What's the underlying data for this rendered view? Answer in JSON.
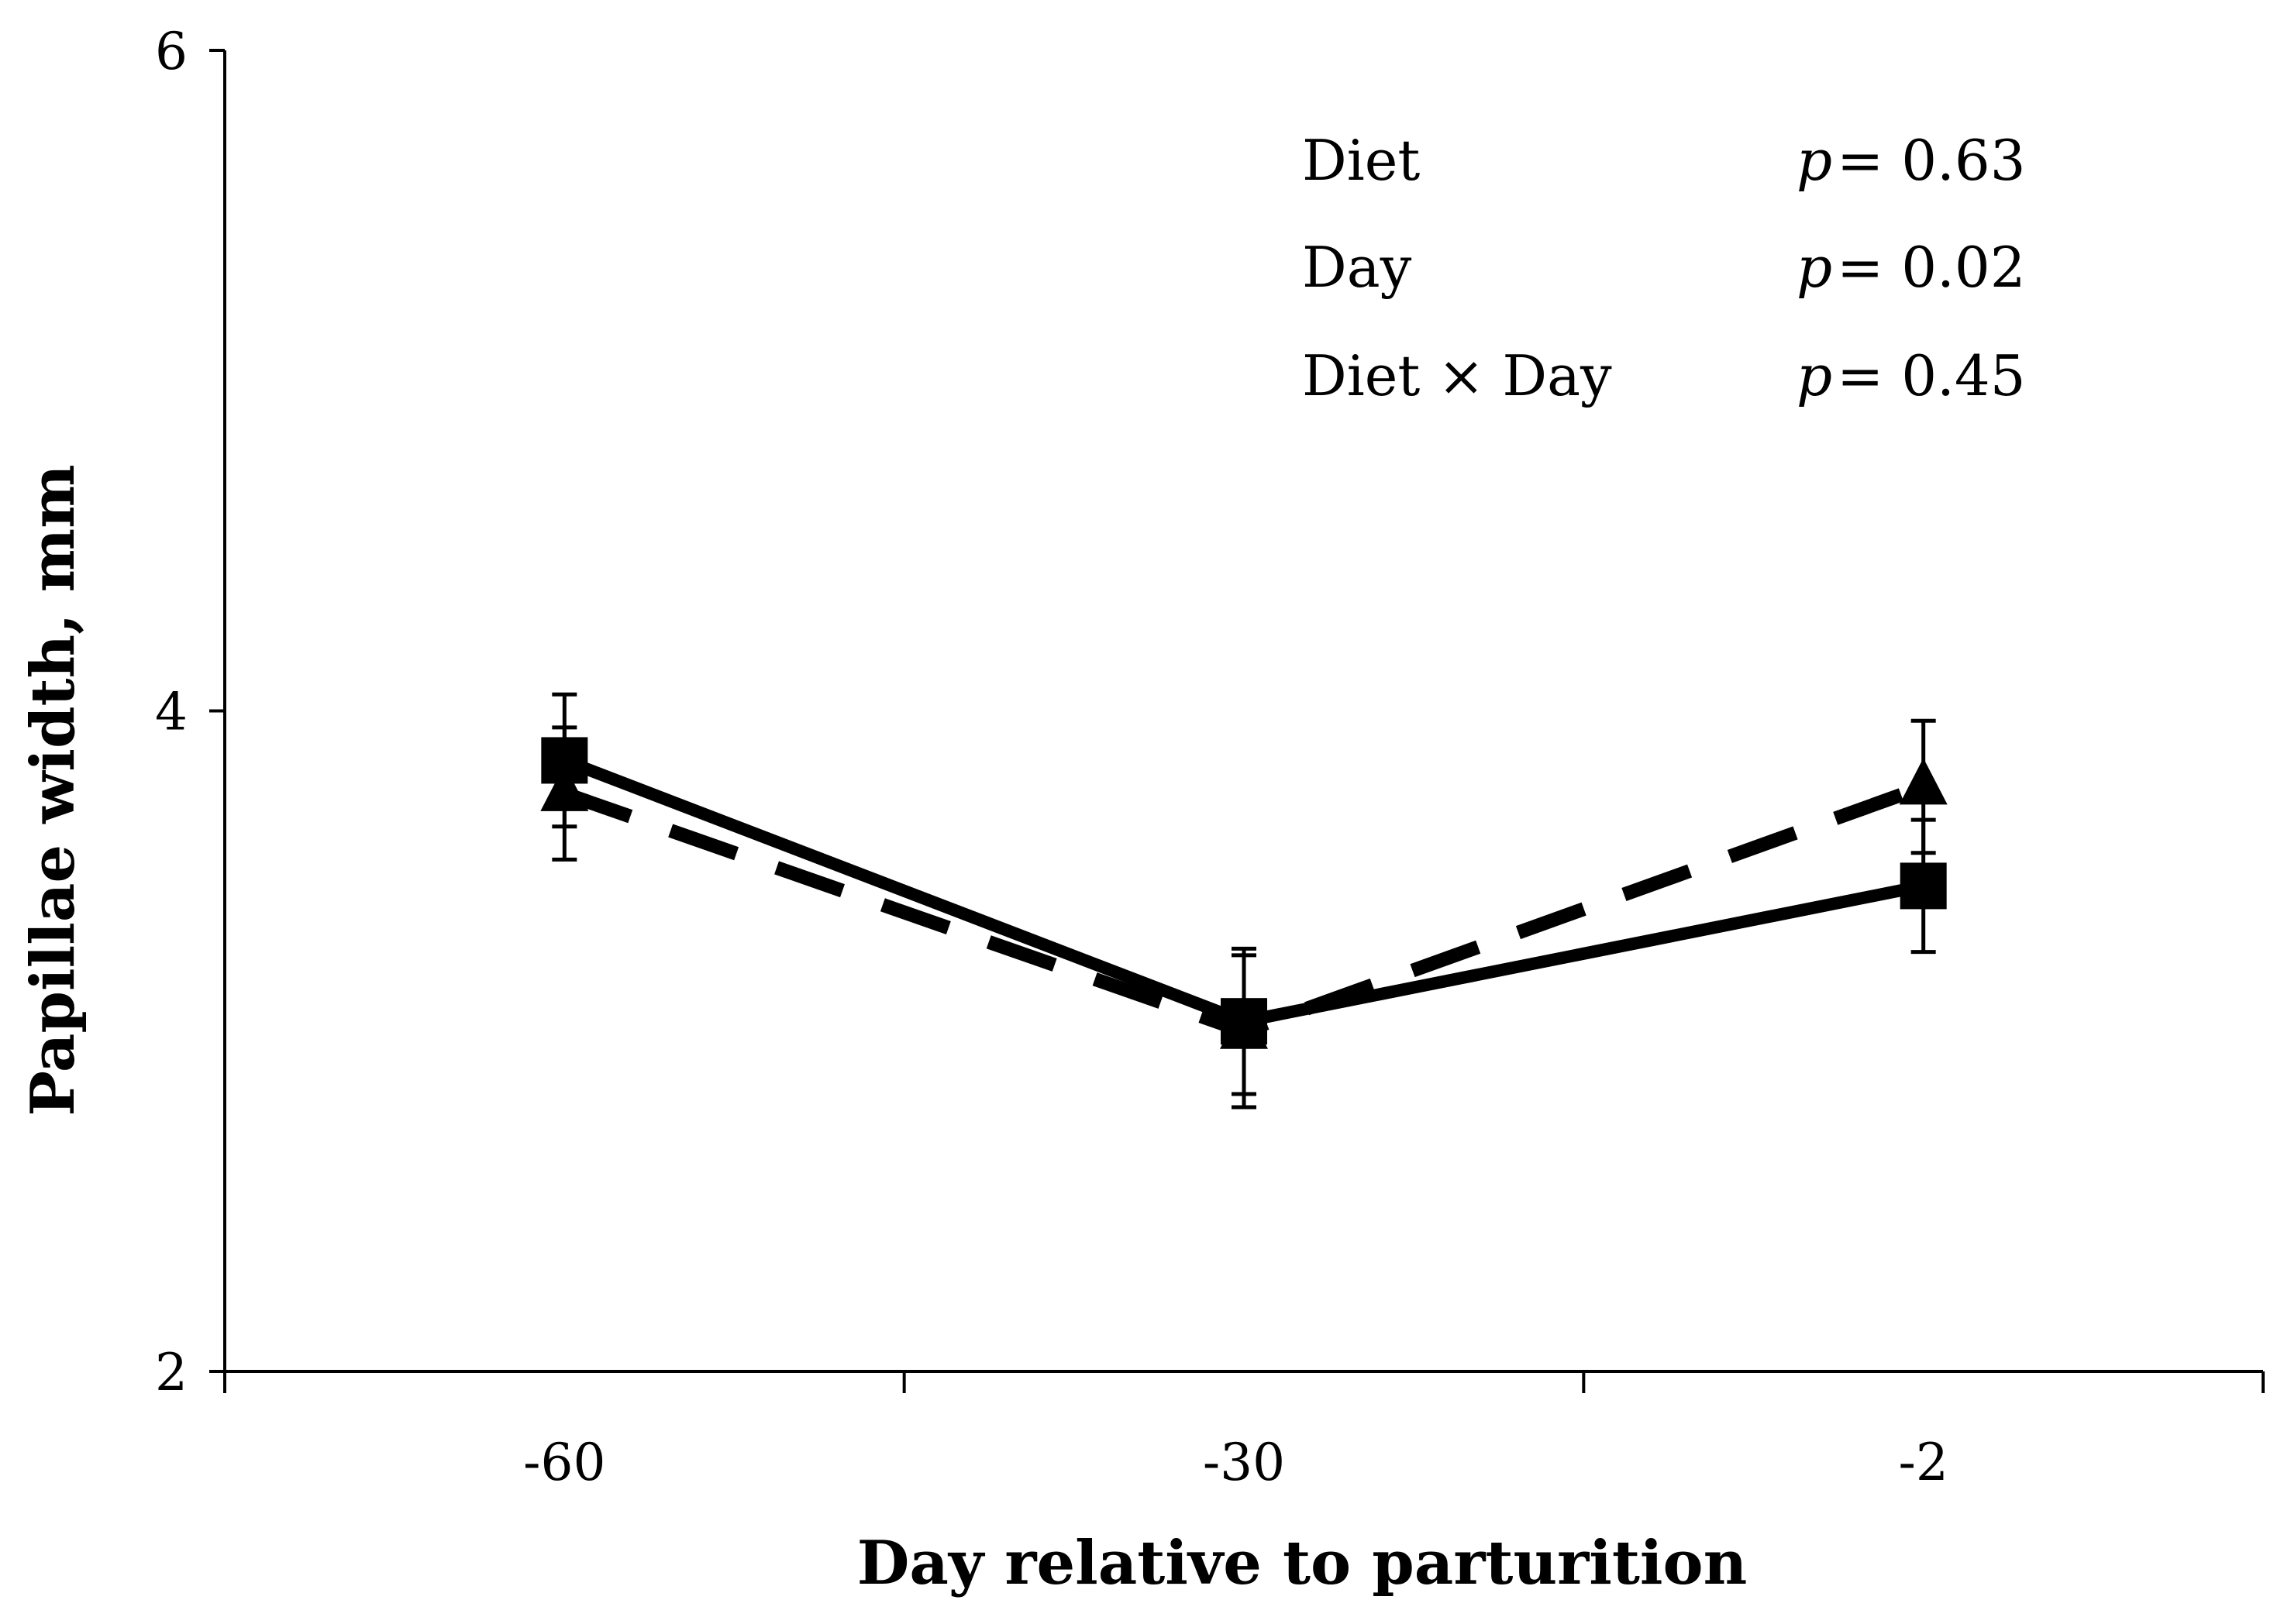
{
  "chart_data": {
    "type": "line",
    "title": "",
    "xlabel": "Day relative to parturition",
    "ylabel": "Papillae width, mm",
    "categories": [
      "-60",
      "-30",
      "-2"
    ],
    "ylim": [
      2,
      6
    ],
    "yticks": [
      "2",
      "4",
      "6"
    ],
    "grid": false,
    "series": [
      {
        "name": "square-solid",
        "marker": "square",
        "line_style": "solid",
        "color": "#000000",
        "values": [
          3.85,
          3.06,
          3.47
        ],
        "errors": [
          0.2,
          0.22,
          0.2
        ]
      },
      {
        "name": "triangle-dashed",
        "marker": "triangle",
        "line_style": "dashed",
        "color": "#000000",
        "values": [
          3.75,
          3.03,
          3.77
        ],
        "errors": [
          0.2,
          0.23,
          0.2
        ]
      }
    ],
    "annotations": [
      {
        "label": "Diet",
        "p_symbol": "p",
        "p_value": "= 0.63"
      },
      {
        "label": "Day",
        "p_symbol": "p",
        "p_value": "= 0.02"
      },
      {
        "label": "Diet × Day",
        "p_symbol": "p",
        "p_value": "= 0.45"
      }
    ]
  }
}
